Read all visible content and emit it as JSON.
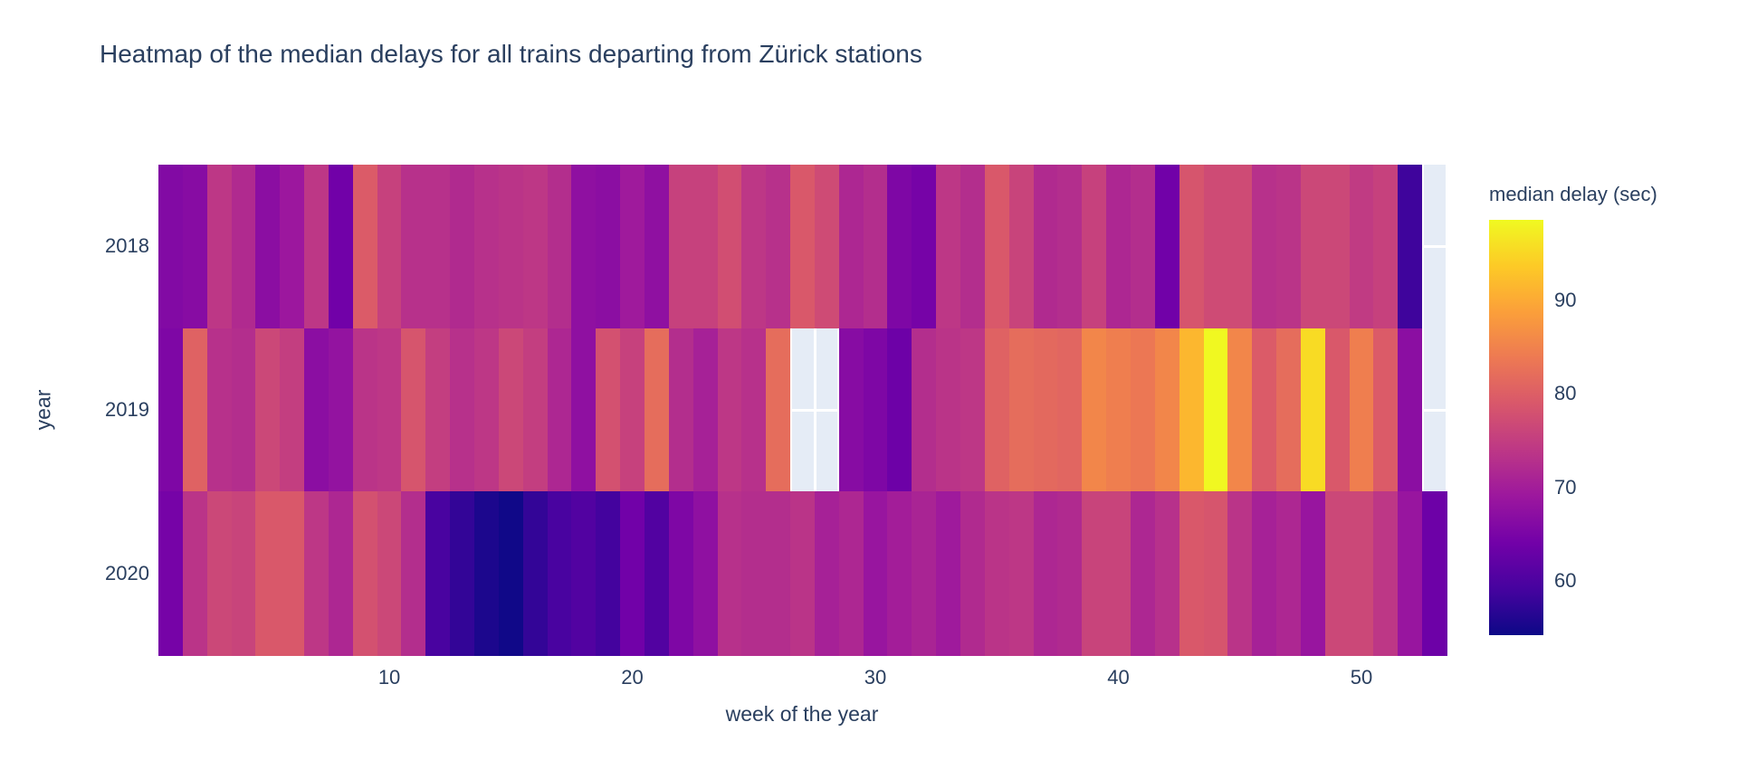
{
  "title": "Heatmap of the median delays for all trains departing from Zürick stations",
  "colors": {
    "text": "#2a3f5f",
    "paper_bg": "#ffffff",
    "plot_bg": "#e5ecf6",
    "missing_cell": "#e5ecf6"
  },
  "chart_data": {
    "type": "heatmap",
    "title": "Heatmap of the median delays for all trains departing from Zürick stations",
    "xlabel": "week of the year",
    "ylabel": "year",
    "x": [
      1,
      2,
      3,
      4,
      5,
      6,
      7,
      8,
      9,
      10,
      11,
      12,
      13,
      14,
      15,
      16,
      17,
      18,
      19,
      20,
      21,
      22,
      23,
      24,
      25,
      26,
      27,
      28,
      29,
      30,
      31,
      32,
      33,
      34,
      35,
      36,
      37,
      38,
      39,
      40,
      41,
      42,
      43,
      44,
      45,
      46,
      47,
      48,
      49,
      50,
      51,
      52,
      53
    ],
    "x_ticks": [
      10,
      20,
      30,
      40,
      50
    ],
    "y": [
      "2018",
      "2019",
      "2020"
    ],
    "zmin": 54.2,
    "zmax": 98.6,
    "grid": true,
    "legend_position": "right-colorbar",
    "colorbar": {
      "title": "median delay (sec)",
      "ticks": [
        60,
        70,
        80,
        90
      ]
    },
    "colorscale": [
      [
        0.0,
        "#0d0887"
      ],
      [
        0.1111,
        "#46039f"
      ],
      [
        0.2222,
        "#7201a8"
      ],
      [
        0.3333,
        "#9c179e"
      ],
      [
        0.4444,
        "#bd3786"
      ],
      [
        0.5556,
        "#d8576b"
      ],
      [
        0.6667,
        "#ed7953"
      ],
      [
        0.7778,
        "#fb9f3a"
      ],
      [
        0.8889,
        "#fdca26"
      ],
      [
        1.0,
        "#f0f921"
      ]
    ],
    "series": [
      {
        "name": "2018",
        "values": [
          66,
          66.5,
          74,
          72,
          67,
          69,
          74,
          64,
          79.5,
          75.5,
          73,
          73,
          72,
          73,
          73.5,
          74,
          72.5,
          67.5,
          67,
          69.5,
          67.5,
          75.5,
          75.5,
          77.5,
          74,
          73,
          79,
          77,
          71.5,
          72.5,
          65.5,
          64.5,
          74,
          72.5,
          79,
          76,
          72,
          72.5,
          75.5,
          71.5,
          72.5,
          64,
          78.5,
          77,
          77,
          73,
          73.5,
          76.5,
          76.5,
          74.5,
          75.5,
          58.5,
          null
        ]
      },
      {
        "name": "2019",
        "values": [
          65.5,
          80.5,
          73,
          72.5,
          76.5,
          75,
          67,
          68,
          73.5,
          74,
          78.5,
          75,
          73,
          74,
          76.5,
          75,
          71.5,
          67.5,
          78,
          75.5,
          82,
          72.5,
          70.5,
          74,
          73,
          82,
          null,
          null,
          66.5,
          65.5,
          63.5,
          72.5,
          73.5,
          74,
          80.5,
          82,
          81.5,
          81,
          85.5,
          84.5,
          83.5,
          85.5,
          91.5,
          98.5,
          85.5,
          79.5,
          82,
          95.5,
          79,
          84.5,
          79.5,
          67,
          null
        ]
      },
      {
        "name": "2020",
        "values": [
          64.5,
          73.5,
          76.5,
          76,
          79,
          79,
          74,
          71.5,
          78,
          76.5,
          72.5,
          59.5,
          57.5,
          55.5,
          54.5,
          57.5,
          59.5,
          60.5,
          59,
          64,
          60.5,
          65.5,
          67.5,
          73,
          72.5,
          72.5,
          73.5,
          70.5,
          71.5,
          68.5,
          70,
          71,
          69.5,
          72,
          73.5,
          74,
          71.5,
          72,
          76,
          76,
          71.5,
          73,
          79,
          78.5,
          73.5,
          70.5,
          71.5,
          68.5,
          76.5,
          76.5,
          74,
          68.5,
          63.5
        ]
      }
    ]
  }
}
